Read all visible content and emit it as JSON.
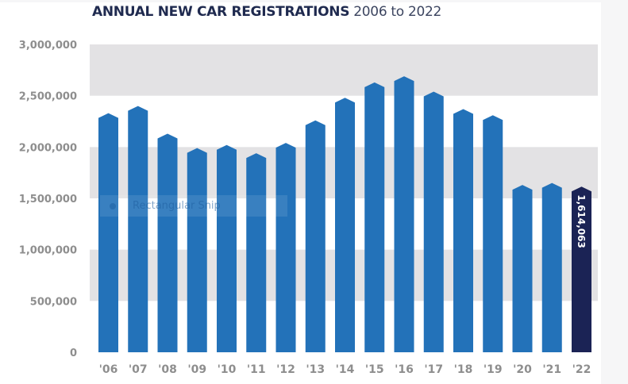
{
  "chart_data": {
    "type": "bar",
    "title": "ANNUAL NEW CAR REGISTRATIONS",
    "subtitle": "2006 to 2022",
    "xlabel": "",
    "ylabel": "",
    "ylim": [
      0,
      3000000
    ],
    "yticks": [
      {
        "value": 0,
        "label": "0"
      },
      {
        "value": 500000,
        "label": "500,000"
      },
      {
        "value": 1000000,
        "label": "1,000,000"
      },
      {
        "value": 1500000,
        "label": "1,500,000"
      },
      {
        "value": 2000000,
        "label": "2,000,000"
      },
      {
        "value": 2500000,
        "label": "2,500,000"
      },
      {
        "value": 3000000,
        "label": "3,000,000"
      }
    ],
    "grid": "alternating horizontal bands",
    "categories": [
      "'06",
      "'07",
      "'08",
      "'09",
      "'10",
      "'11",
      "'12",
      "'13",
      "'14",
      "'15",
      "'16",
      "'17",
      "'18",
      "'19",
      "'20",
      "'21",
      "'22"
    ],
    "values": [
      2330000,
      2400000,
      2130000,
      1990000,
      2020000,
      1940000,
      2040000,
      2260000,
      2480000,
      2630000,
      2690000,
      2540000,
      2370000,
      2310000,
      1630000,
      1650000,
      1614063
    ],
    "highlight_index": 16,
    "data_labels": [
      {
        "index": 16,
        "text": "1,614,063"
      }
    ],
    "colors": {
      "bar": "#2372b9",
      "highlight": "#1b2355",
      "band": "#e3e2e4",
      "title": "#1f2a4f",
      "axis_text": "#8e8e8e"
    }
  },
  "overlay": {
    "snip_label": "Rectangular Snip"
  }
}
